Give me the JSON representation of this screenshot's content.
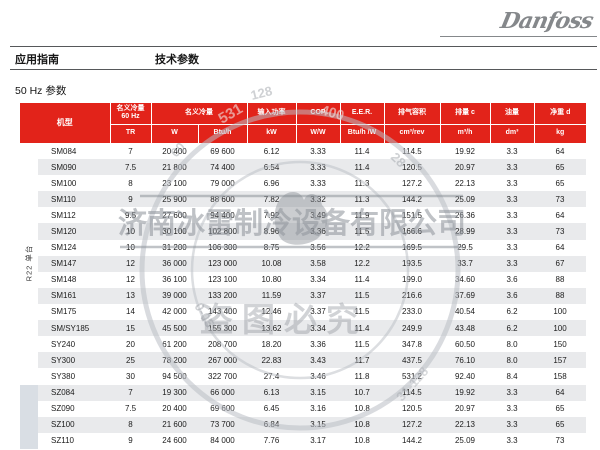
{
  "brand": {
    "logo_text": "Danfoss"
  },
  "breadcrumb": {
    "left": "应用指南",
    "right": "技术参数"
  },
  "section_title": "50 Hz 参数",
  "colors": {
    "header_red": "#e2231a",
    "stripe_gray": "#e9eaec",
    "sz_band": "#d9dee4",
    "rule_gray": "#56585a",
    "logo_gray": "#85888b"
  },
  "table": {
    "header": {
      "model": "机型",
      "cap60_line1": "名义冷量",
      "cap60_line2": "60 Hz",
      "capacity": "名义冷量",
      "power": "输入功率",
      "cop": "COP",
      "eer": "E.E.R.",
      "displacement": "排气容积",
      "swept": "排量 c",
      "oil": "油量",
      "weight": "净重 d",
      "units": {
        "tr": "TR",
        "w": "W",
        "btuh": "Btu/h",
        "kw": "kW",
        "ww": "W/W",
        "btuhw": "Btu/h /W",
        "cm3rev": "cm³/rev",
        "m3h": "m³/h",
        "dm3": "dm³",
        "kg": "kg"
      }
    },
    "sections": [
      {
        "css": "r22",
        "label": "R22 单台",
        "rows": [
          {
            "model": "SM084",
            "values": [
              "7",
              "20 400",
              "69 600",
              "6.12",
              "3.33",
              "11.4",
              "114.5",
              "19.92",
              "3.3",
              "64"
            ]
          },
          {
            "model": "SM090",
            "values": [
              "7.5",
              "21 800",
              "74 400",
              "6.54",
              "3.33",
              "11.4",
              "120.5",
              "20.97",
              "3.3",
              "65"
            ]
          },
          {
            "model": "SM100",
            "values": [
              "8",
              "23 100",
              "79 000",
              "6.96",
              "3.33",
              "11.3",
              "127.2",
              "22.13",
              "3.3",
              "65"
            ]
          },
          {
            "model": "SM110",
            "values": [
              "9",
              "25 900",
              "88 600",
              "7.82",
              "3.32",
              "11.3",
              "144.2",
              "25.09",
              "3.3",
              "73"
            ]
          },
          {
            "model": "SM112",
            "values": [
              "9.5",
              "27 600",
              "94 400",
              "7.92",
              "3.49",
              "11.9",
              "151.5",
              "26.36",
              "3.3",
              "64"
            ]
          },
          {
            "model": "SM120",
            "values": [
              "10",
              "30 100",
              "102 800",
              "8.96",
              "3.36",
              "11.5",
              "166.6",
              "28.99",
              "3.3",
              "73"
            ]
          },
          {
            "model": "SM124",
            "values": [
              "10",
              "31 200",
              "106 300",
              "8.75",
              "3.56",
              "12.2",
              "169.5",
              "29.5",
              "3.3",
              "64"
            ]
          },
          {
            "model": "SM147",
            "values": [
              "12",
              "36 000",
              "123 000",
              "10.08",
              "3.58",
              "12.2",
              "193.5",
              "33.7",
              "3.3",
              "67"
            ]
          },
          {
            "model": "SM148",
            "values": [
              "12",
              "36 100",
              "123 100",
              "10.80",
              "3.34",
              "11.4",
              "199.0",
              "34.60",
              "3.6",
              "88"
            ]
          },
          {
            "model": "SM161",
            "values": [
              "13",
              "39 000",
              "133 200",
              "11.59",
              "3.37",
              "11.5",
              "216.6",
              "37.69",
              "3.6",
              "88"
            ]
          },
          {
            "model": "SM175",
            "values": [
              "14",
              "42 000",
              "143 400",
              "12.46",
              "3.37",
              "11.5",
              "233.0",
              "40.54",
              "6.2",
              "100"
            ]
          },
          {
            "model": "SM/SY185",
            "values": [
              "15",
              "45 500",
              "155 300",
              "13.62",
              "3.34",
              "11.4",
              "249.9",
              "43.48",
              "6.2",
              "100"
            ]
          },
          {
            "model": "SY240",
            "values": [
              "20",
              "61 200",
              "208 700",
              "18.20",
              "3.36",
              "11.5",
              "347.8",
              "60.50",
              "8.0",
              "150"
            ]
          },
          {
            "model": "SY300",
            "values": [
              "25",
              "78 200",
              "267 000",
              "22.83",
              "3.43",
              "11.7",
              "437.5",
              "76.10",
              "8.0",
              "157"
            ]
          },
          {
            "model": "SY380",
            "values": [
              "30",
              "94 500",
              "322 700",
              "27.4",
              "3.46",
              "11.8",
              "531.2",
              "92.40",
              "8.4",
              "158"
            ]
          }
        ]
      },
      {
        "css": "sz",
        "label": "",
        "rows": [
          {
            "model": "SZ084",
            "values": [
              "7",
              "19 300",
              "66 000",
              "6.13",
              "3.15",
              "10.7",
              "114.5",
              "19.92",
              "3.3",
              "64"
            ]
          },
          {
            "model": "SZ090",
            "values": [
              "7.5",
              "20 400",
              "69 600",
              "6.45",
              "3.16",
              "10.8",
              "120.5",
              "20.97",
              "3.3",
              "65"
            ]
          },
          {
            "model": "SZ100",
            "values": [
              "8",
              "21 600",
              "73 700",
              "6.84",
              "3.15",
              "10.8",
              "127.2",
              "22.13",
              "3.3",
              "65"
            ]
          },
          {
            "model": "SZ110",
            "values": [
              "9",
              "24 600",
              "84 000",
              "7.76",
              "3.17",
              "10.8",
              "144.2",
              "25.09",
              "3.3",
              "73"
            ]
          }
        ]
      }
    ]
  },
  "watermark": {
    "company": "济南冰雷制冷设备有限公司",
    "notice": "盗图必究",
    "phone_fragments": {
      "f1": "128",
      "f2": "531",
      "f3": "400",
      "f4": "00",
      "f5": "28",
      "f6": "0-05",
      "f7": "31-128"
    }
  }
}
